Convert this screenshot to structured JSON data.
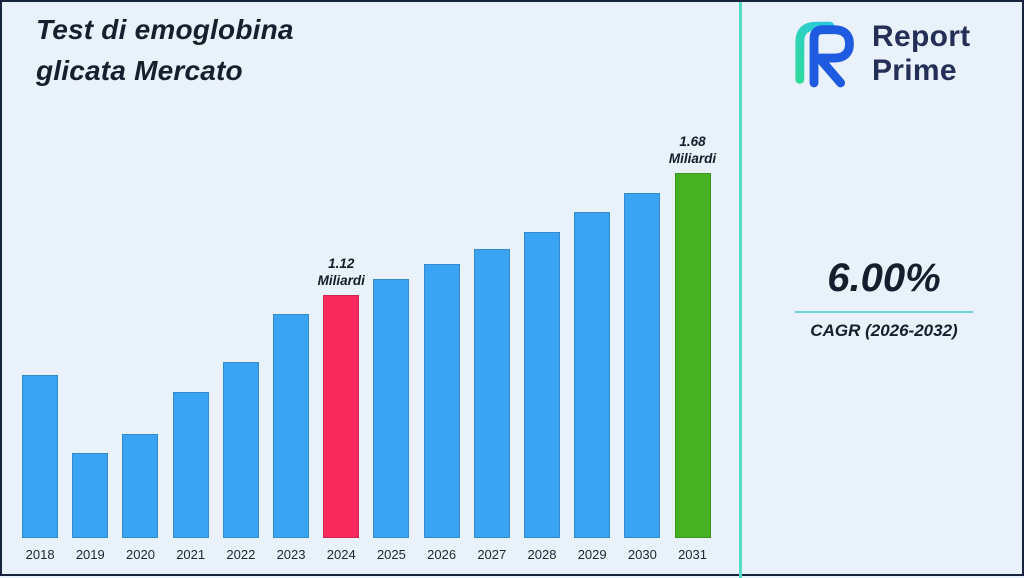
{
  "header": {
    "title": "Test di emoglobina\nglicata Mercato"
  },
  "logo": {
    "line1": "Report",
    "line2": "Prime",
    "text_color": "#232f56",
    "mark_blue": "#1e5be0",
    "mark_teal_start": "#2fd99d",
    "mark_teal_end": "#29c9e2"
  },
  "stats": {
    "value": "6.00%",
    "label": "CAGR (2026-2032)",
    "rule_color": "#6ed2de"
  },
  "divider_color": "#52dcc6",
  "chart_data": {
    "type": "bar",
    "title": "Test di emoglobina glicata Mercato",
    "categories": [
      "2018",
      "2019",
      "2020",
      "2021",
      "2022",
      "2023",
      "2024",
      "2025",
      "2026",
      "2027",
      "2028",
      "2029",
      "2030",
      "2031"
    ],
    "values": [
      0.75,
      0.39,
      0.48,
      0.67,
      0.81,
      1.03,
      1.12,
      1.19,
      1.26,
      1.33,
      1.41,
      1.5,
      1.59,
      1.68
    ],
    "unit": "Miliardi",
    "ylim": [
      0,
      1.8
    ],
    "grid": false,
    "legend": false,
    "xlabel": "",
    "ylabel": "",
    "colors": {
      "default": "#3ba4f2",
      "overrides": {
        "2024": "#fa2a5f",
        "2031": "#46b123"
      }
    },
    "annotations": [
      {
        "category": "2024",
        "lines": [
          "1.12",
          "Miliardi"
        ]
      },
      {
        "category": "2031",
        "lines": [
          "1.68",
          "Miliardi"
        ]
      }
    ]
  }
}
